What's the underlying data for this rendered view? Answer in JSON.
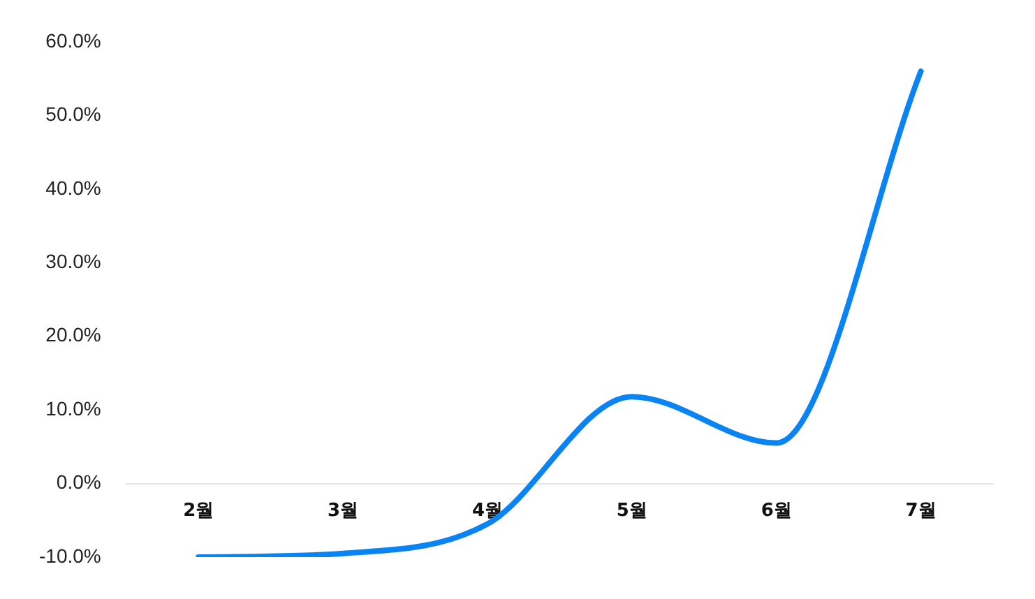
{
  "chart_data": {
    "type": "line",
    "categories": [
      "2월",
      "3월",
      "4월",
      "5월",
      "6월",
      "7월"
    ],
    "series": [
      {
        "color": "#0a84f2",
        "values": [
          -10,
          -9.5,
          -5.5,
          11.8,
          5.5,
          56
        ]
      }
    ],
    "ylim": [
      -10,
      60
    ],
    "yticks": [
      {
        "value": -10,
        "label": "-10.0%"
      },
      {
        "value": 0,
        "label": "0.0%"
      },
      {
        "value": 10,
        "label": "10.0%"
      },
      {
        "value": 20,
        "label": "20.0%"
      },
      {
        "value": 30,
        "label": "30.0%"
      },
      {
        "value": 40,
        "label": "40.0%"
      },
      {
        "value": 50,
        "label": "50.0%"
      },
      {
        "value": 60,
        "label": "60.0%"
      }
    ],
    "grid": false,
    "legend": false,
    "marker": "none",
    "line_style": "solid"
  }
}
